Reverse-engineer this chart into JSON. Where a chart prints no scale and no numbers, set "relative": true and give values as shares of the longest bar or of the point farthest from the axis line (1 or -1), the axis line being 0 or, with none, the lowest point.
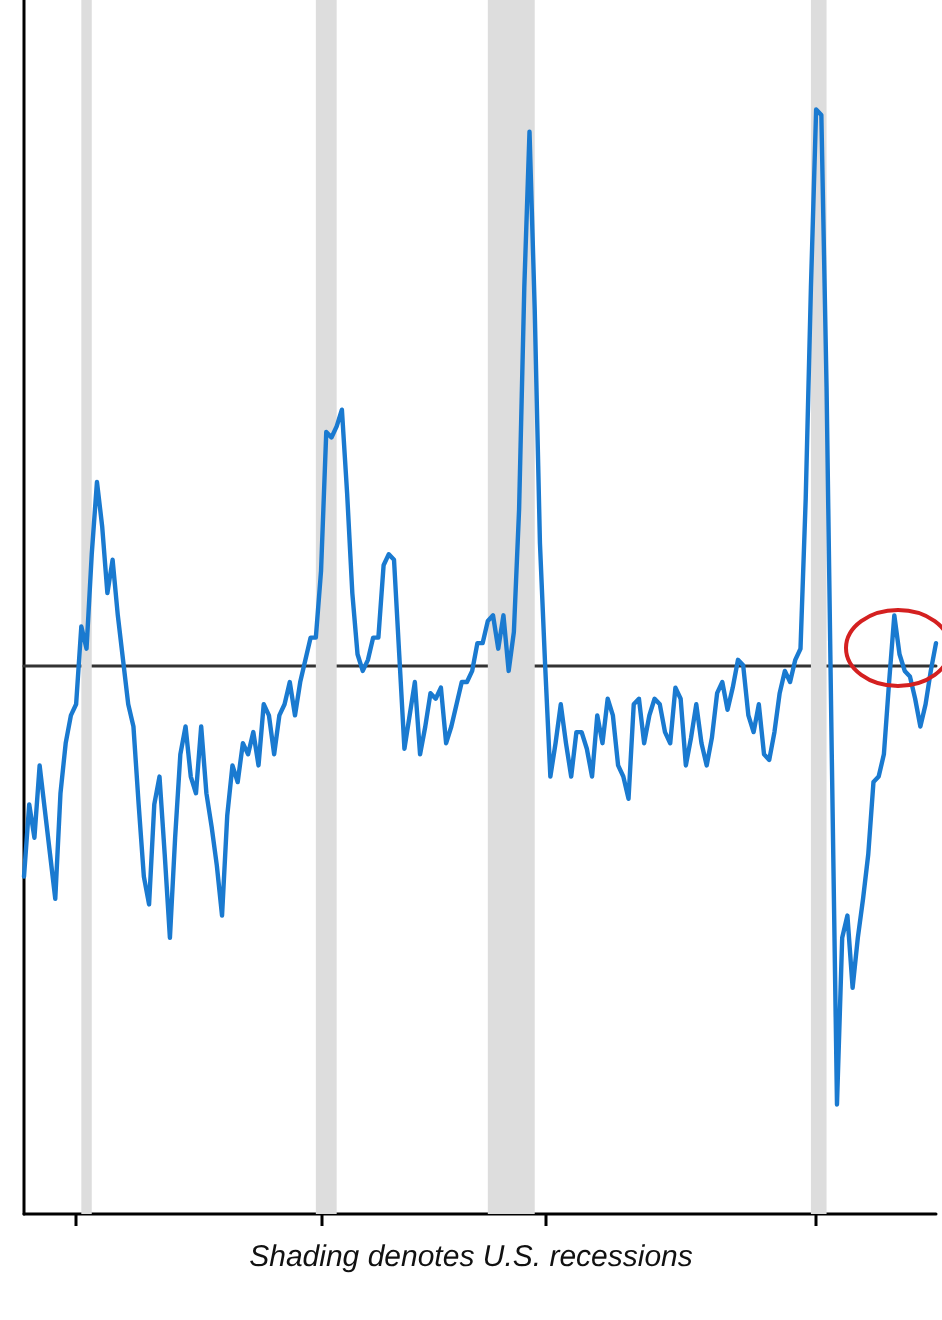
{
  "chart_data": {
    "type": "line",
    "relative": true,
    "annotations": [
      "Shading denotes U.S. recessions"
    ],
    "categories": [
      null,
      null,
      null,
      null,
      null,
      null,
      null,
      null,
      null,
      null,
      null,
      null,
      null,
      null,
      null,
      null,
      null,
      null,
      null,
      null,
      null,
      null,
      null,
      null,
      null,
      null,
      null,
      null,
      null,
      null,
      null,
      null,
      null,
      null,
      null,
      null,
      null,
      null,
      null,
      null,
      null,
      null,
      null,
      null,
      null,
      null,
      null,
      null,
      null,
      null,
      null,
      null,
      null,
      null,
      null,
      null,
      null,
      null,
      null,
      null,
      null,
      null,
      null,
      null,
      null,
      null,
      null,
      null,
      null,
      null,
      null,
      null,
      null,
      null,
      null,
      null,
      null,
      null,
      null,
      null,
      null,
      null,
      null,
      null,
      null,
      null,
      null,
      null,
      null,
      null,
      null,
      null,
      null,
      null,
      null,
      null,
      null,
      null,
      null,
      null,
      null,
      null,
      null,
      null,
      null,
      null,
      null,
      null,
      null,
      null,
      null,
      null,
      null,
      null,
      null,
      null,
      null,
      null,
      null,
      null,
      null,
      null,
      null,
      null,
      null,
      null,
      null,
      null,
      null,
      null,
      null,
      null,
      null,
      null,
      null,
      null,
      null,
      null,
      null,
      null,
      null,
      null,
      null,
      null,
      null,
      null,
      null,
      null,
      null,
      null,
      null,
      null,
      null,
      null,
      null,
      null,
      null,
      null,
      null,
      null,
      null,
      null,
      null,
      null,
      null,
      null,
      null,
      null,
      null,
      null,
      null,
      null,
      null,
      null,
      null,
      null
    ],
    "marker": "none",
    "line_style": "solid",
    "series": [
      {
        "color": "#1a7ad0",
        "values": [
          -0.38,
          -0.25,
          -0.31,
          -0.18,
          -0.26,
          -0.34,
          -0.42,
          -0.23,
          -0.14,
          -0.09,
          -0.07,
          0.07,
          0.03,
          0.2,
          0.33,
          0.25,
          0.13,
          0.19,
          0.09,
          0.01,
          -0.07,
          -0.11,
          -0.25,
          -0.38,
          -0.43,
          -0.25,
          -0.2,
          -0.34,
          -0.49,
          -0.31,
          -0.16,
          -0.11,
          -0.2,
          -0.23,
          -0.11,
          -0.23,
          -0.29,
          -0.36,
          -0.45,
          -0.27,
          -0.18,
          -0.21,
          -0.14,
          -0.16,
          -0.12,
          -0.18,
          -0.07,
          -0.09,
          -0.16,
          -0.09,
          -0.07,
          -0.03,
          -0.09,
          -0.03,
          0.01,
          0.05,
          0.05,
          0.17,
          0.42,
          0.41,
          0.43,
          0.46,
          0.31,
          0.13,
          0.02,
          -0.01,
          0.01,
          0.05,
          0.05,
          0.18,
          0.2,
          0.19,
          0.02,
          -0.15,
          -0.09,
          -0.03,
          -0.16,
          -0.11,
          -0.05,
          -0.06,
          -0.04,
          -0.14,
          -0.11,
          -0.07,
          -0.03,
          -0.03,
          -0.01,
          0.04,
          0.04,
          0.08,
          0.09,
          0.03,
          0.09,
          -0.01,
          0.06,
          0.28,
          0.68,
          0.96,
          0.64,
          0.22,
          0,
          -0.2,
          -0.14,
          -0.07,
          -0.14,
          -0.2,
          -0.12,
          -0.12,
          -0.15,
          -0.2,
          -0.09,
          -0.14,
          -0.06,
          -0.09,
          -0.18,
          -0.2,
          -0.24,
          -0.07,
          -0.06,
          -0.14,
          -0.09,
          -0.06,
          -0.07,
          -0.12,
          -0.14,
          -0.04,
          -0.06,
          -0.18,
          -0.13,
          -0.07,
          -0.14,
          -0.18,
          -0.13,
          -0.05,
          -0.03,
          -0.08,
          -0.04,
          0.01,
          0,
          -0.09,
          -0.12,
          -0.07,
          -0.16,
          -0.17,
          -0.12,
          -0.05,
          -0.01,
          -0.03,
          0.01,
          0.03,
          0.3,
          0.68,
          1.0,
          0.99,
          0.5,
          -0.16,
          -0.79,
          -0.49,
          -0.45,
          -0.58,
          -0.49,
          -0.42,
          -0.34,
          -0.21,
          -0.2,
          -0.16,
          -0.03,
          0.09,
          0.02,
          -0.01,
          -0.02,
          -0.06,
          -0.11,
          -0.07,
          -0.01,
          0.04
        ]
      }
    ]
  }
}
